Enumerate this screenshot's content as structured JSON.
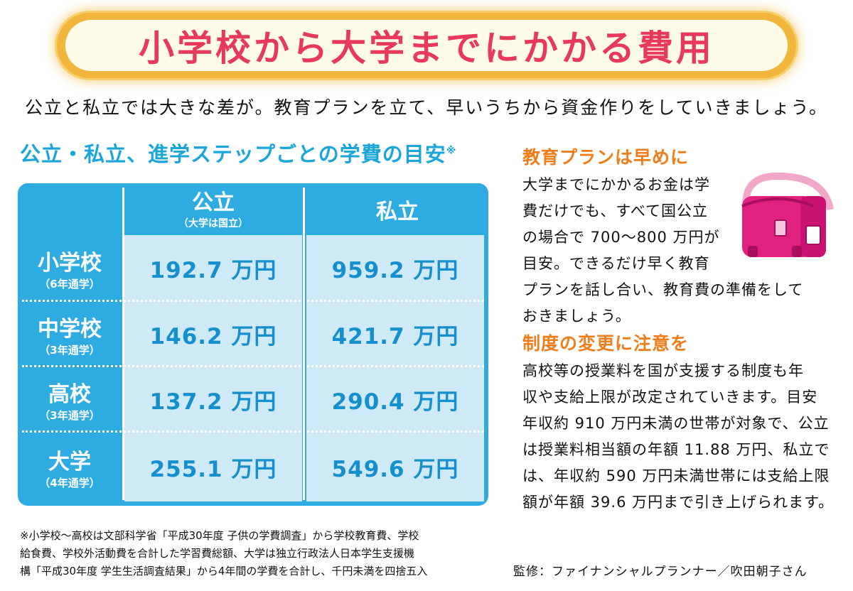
{
  "title": "小学校から大学までにかかる費用",
  "subtitle": "公立と私立では大きな差が。教育プランを立て、早いうちから資金作りをしていきましょう。",
  "table": {
    "heading": "公立・私立、進学ステップごとの学費の目安",
    "heading_mark": "※",
    "col_public": "公立",
    "col_public_note": "（大学は国立）",
    "col_private": "私立",
    "rows": [
      {
        "label": "小学校",
        "years": "（6年通学）",
        "public": "192.7 万円",
        "private": "959.2 万円"
      },
      {
        "label": "中学校",
        "years": "（3年通学）",
        "public": "146.2 万円",
        "private": "421.7 万円"
      },
      {
        "label": "高校",
        "years": "（3年通学）",
        "public": "137.2 万円",
        "private": "290.4 万円"
      },
      {
        "label": "大学",
        "years": "（4年通学）",
        "public": "255.1 万円",
        "private": "549.6 万円"
      }
    ]
  },
  "section1": {
    "heading": "教育プランは早めに",
    "lines": [
      "大学までにかかるお金は学",
      "費だけでも、すべて国公立",
      "の場合で 700〜800 万円が",
      "目安。できるだけ早く教育",
      "プランを話し合い、教育費の準備をして",
      "おきましょう。"
    ]
  },
  "section2": {
    "heading": "制度の変更に注意を",
    "lines": [
      "高校等の授業料を国が支援する制度も年",
      "収や支給上限が改定されていきます。目安",
      "年収約 910 万円未満の世帯が対象で、公立",
      "は授業料相当額の年額 11.88 万円、私立で",
      "は、年収約 590 万円未満世帯には支給上限",
      "額が年額 39.6 万円まで引き上げられます。"
    ]
  },
  "footnote": [
    "※小学校〜高校は文部科学省「平成30年度 子供の学費調査」から学校教育費、学校",
    "給食費、学校外活動費を合計した学習費総額、大学は独立行政法人日本学生支援機",
    "構「平成30年度 学生生活調査結果」から4年間の学費を合計し、千円未満を四捨五入"
  ],
  "credit": "監修：ファイナンシャルプランナー／吹田朝子さん",
  "icons": {
    "school_bag": "randoseru-icon"
  },
  "colors": {
    "title": "#e8395a",
    "accent_blue": "#2eace2",
    "cell_bg": "#cfe9f7",
    "value_blue": "#1590cf",
    "section_orange": "#ef7d1a",
    "bag_pink": "#e0217e"
  }
}
